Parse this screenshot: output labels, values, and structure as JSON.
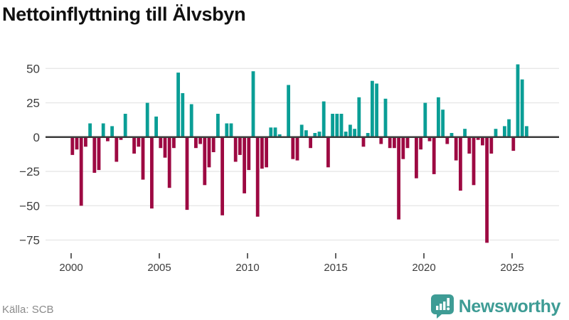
{
  "title": "Nettoinflyttning till Älvsbyn",
  "source": "Källa: SCB",
  "brand": {
    "name": "Newsworthy",
    "color": "#3e9c95"
  },
  "colors": {
    "positive_bar": "#0a9e96",
    "negative_bar": "#9d0942",
    "grid_line": "#e7e7e7",
    "zero_line": "#3b3b3b",
    "axis_text": "#3d3d3d",
    "source_text": "#8a8a8a",
    "title_text": "#111111"
  },
  "chart_data": {
    "type": "bar",
    "title": "Nettoinflyttning till Älvsbyn",
    "series_name": "Nettoinflyttning per kvartal",
    "frequency": "quarterly",
    "start_period": "2000-Q1",
    "xlabel": "",
    "ylabel": "",
    "grid": "horizontal",
    "legend": "none",
    "ylim": [
      -85,
      62
    ],
    "y_ticks": [
      50,
      25,
      0,
      -25,
      -50,
      -75
    ],
    "y_tick_labels": [
      "50",
      "25",
      "0",
      "−25",
      "−50",
      "−75"
    ],
    "x_tick_labels": [
      "2000",
      "2005",
      "2010",
      "2015",
      "2020",
      "2025"
    ],
    "values": [
      -13,
      -9,
      -50,
      -7,
      10,
      -26,
      -24,
      10,
      -3,
      8,
      -18,
      -2,
      17,
      0,
      -12,
      -7,
      -31,
      25,
      -52,
      15,
      -8,
      -15,
      -37,
      -8,
      47,
      32,
      -53,
      24,
      -8,
      -5,
      -35,
      -22,
      -11,
      17,
      -57,
      10,
      10,
      -18,
      -13,
      -41,
      -24,
      48,
      -58,
      -23,
      -22,
      7,
      7,
      2,
      0,
      38,
      -16,
      -17,
      9,
      5,
      -8,
      3,
      4,
      26,
      -22,
      17,
      17,
      17,
      4,
      9,
      6,
      29,
      -7,
      3,
      41,
      39,
      -5,
      28,
      -8,
      -8,
      -60,
      -16,
      -8,
      0,
      -30,
      -9,
      25,
      -3,
      -27,
      29,
      20,
      -5,
      3,
      -17,
      -39,
      6,
      -12,
      -35,
      -2,
      -6,
      -77,
      -12,
      6,
      0,
      8,
      13,
      -10,
      53,
      42,
      8
    ]
  }
}
